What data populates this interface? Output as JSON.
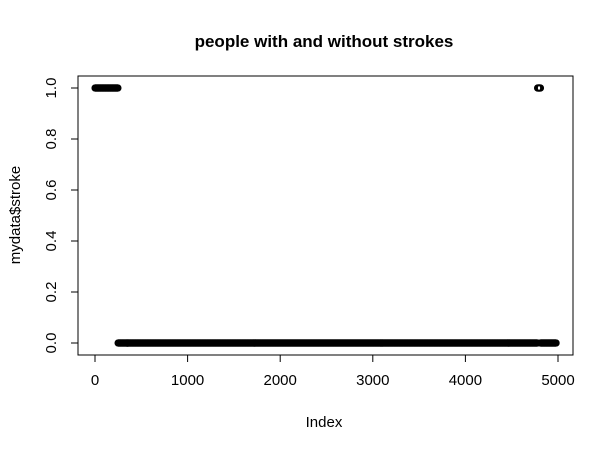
{
  "chart_data": {
    "type": "scatter",
    "title": "people with and without strokes",
    "xlabel": "Index",
    "ylabel": "mydata$stroke",
    "xlim": [
      0,
      5000
    ],
    "ylim": [
      0,
      1
    ],
    "x_ticks": [
      0,
      1000,
      2000,
      3000,
      4000,
      5000
    ],
    "x_tick_labels": [
      "0",
      "1000",
      "2000",
      "3000",
      "4000",
      "5000"
    ],
    "y_ticks": [
      0.0,
      0.2,
      0.4,
      0.6,
      0.8,
      1.0
    ],
    "y_tick_labels": [
      "0.0",
      "0.2",
      "0.4",
      "0.6",
      "0.8",
      "1.0"
    ],
    "grid": false,
    "marker": "open-circle",
    "series": [
      {
        "x_ranges": [
          {
            "from": 1,
            "to": 249,
            "y": 1
          },
          {
            "from": 4780,
            "to": 4810,
            "y": 1
          },
          {
            "from": 250,
            "to": 4779,
            "y": 0
          },
          {
            "from": 4811,
            "to": 4981,
            "y": 0
          }
        ]
      }
    ]
  }
}
